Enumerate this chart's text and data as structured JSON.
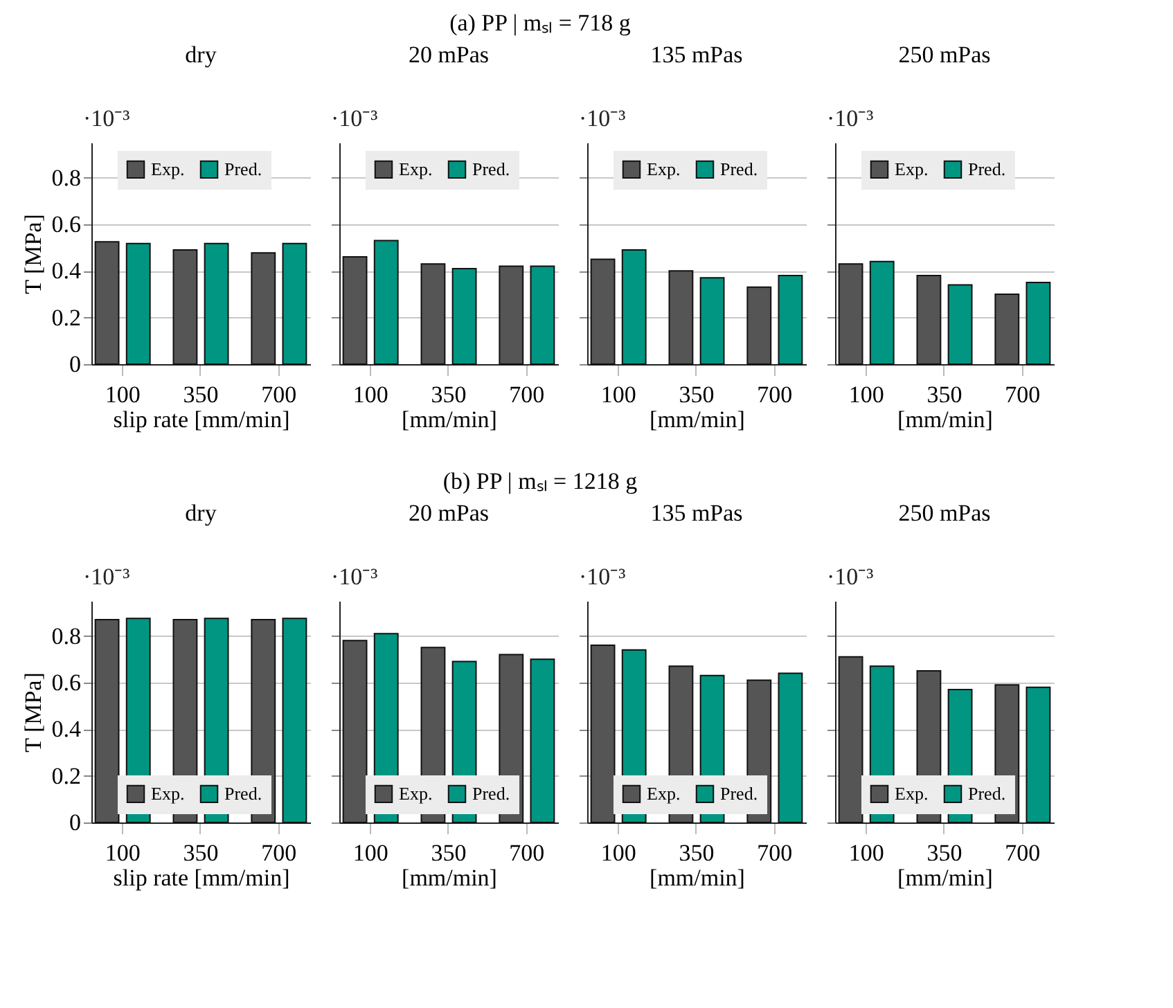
{
  "chart_data": [
    {
      "type": "bar",
      "title": "dry",
      "xlabel": "slip rate [mm/min]",
      "ylabel": "T [MPa]",
      "annotations": [
        "·10⁻³",
        "(a) PP | mₛₗ = 718 g"
      ],
      "categories": [
        "100",
        "350",
        "700"
      ],
      "series": [
        {
          "name": "Exp.",
          "color": "#555555",
          "values": [
            0.525,
            0.49,
            0.477
          ]
        },
        {
          "name": "Pred.",
          "color": "#009682",
          "values": [
            0.517,
            0.517,
            0.517
          ]
        }
      ],
      "ylim": [
        0,
        0.95
      ],
      "yticks": [
        0,
        0.2,
        0.4,
        0.6,
        0.8
      ],
      "grid": "y",
      "legend": "top"
    },
    {
      "type": "bar",
      "title": "20 mPas",
      "xlabel": "[mm/min]",
      "annotations": [
        "·10⁻³"
      ],
      "categories": [
        "100",
        "350",
        "700"
      ],
      "series": [
        {
          "name": "Exp.",
          "color": "#555555",
          "values": [
            0.46,
            0.43,
            0.42
          ]
        },
        {
          "name": "Pred.",
          "color": "#009682",
          "values": [
            0.53,
            0.41,
            0.42
          ]
        }
      ],
      "ylim": [
        0,
        0.95
      ],
      "yticks": [
        0,
        0.2,
        0.4,
        0.6,
        0.8
      ],
      "grid": "y",
      "legend": "top",
      "tick_labels": "x"
    },
    {
      "type": "bar",
      "title": "135 mPas",
      "xlabel": "[mm/min]",
      "annotations": [
        "·10⁻³"
      ],
      "categories": [
        "100",
        "350",
        "700"
      ],
      "series": [
        {
          "name": "Exp.",
          "color": "#555555",
          "values": [
            0.45,
            0.4,
            0.33
          ]
        },
        {
          "name": "Pred.",
          "color": "#009682",
          "values": [
            0.49,
            0.37,
            0.38
          ]
        }
      ],
      "ylim": [
        0,
        0.95
      ],
      "yticks": [
        0,
        0.2,
        0.4,
        0.6,
        0.8
      ],
      "grid": "y",
      "legend": "top",
      "tick_labels": "x"
    },
    {
      "type": "bar",
      "title": "250 mPas",
      "xlabel": "[mm/min]",
      "annotations": [
        "·10⁻³"
      ],
      "categories": [
        "100",
        "350",
        "700"
      ],
      "series": [
        {
          "name": "Exp.",
          "color": "#555555",
          "values": [
            0.43,
            0.38,
            0.3
          ]
        },
        {
          "name": "Pred.",
          "color": "#009682",
          "values": [
            0.44,
            0.34,
            0.35
          ]
        }
      ],
      "ylim": [
        0,
        0.95
      ],
      "yticks": [
        0,
        0.2,
        0.4,
        0.6,
        0.8
      ],
      "grid": "y",
      "legend": "top",
      "tick_labels": "x"
    },
    {
      "type": "bar",
      "title": "dry",
      "xlabel": "slip rate [mm/min]",
      "ylabel": "T [MPa]",
      "annotations": [
        "·10⁻³",
        "(b) PP | mₛₗ = 1218 g"
      ],
      "categories": [
        "100",
        "350",
        "700"
      ],
      "series": [
        {
          "name": "Exp.",
          "color": "#555555",
          "values": [
            0.87,
            0.87,
            0.87
          ]
        },
        {
          "name": "Pred.",
          "color": "#009682",
          "values": [
            0.875,
            0.875,
            0.875
          ]
        }
      ],
      "ylim": [
        0,
        0.95
      ],
      "yticks": [
        0,
        0.2,
        0.4,
        0.6,
        0.8
      ],
      "grid": "y",
      "legend": "bottom"
    },
    {
      "type": "bar",
      "title": "20 mPas",
      "xlabel": "[mm/min]",
      "annotations": [
        "·10⁻³"
      ],
      "categories": [
        "100",
        "350",
        "700"
      ],
      "series": [
        {
          "name": "Exp.",
          "color": "#555555",
          "values": [
            0.78,
            0.75,
            0.72
          ]
        },
        {
          "name": "Pred.",
          "color": "#009682",
          "values": [
            0.81,
            0.69,
            0.7
          ]
        }
      ],
      "ylim": [
        0,
        0.95
      ],
      "yticks": [
        0,
        0.2,
        0.4,
        0.6,
        0.8
      ],
      "grid": "y",
      "legend": "bottom",
      "tick_labels": "x"
    },
    {
      "type": "bar",
      "title": "135 mPas",
      "xlabel": "[mm/min]",
      "annotations": [
        "·10⁻³"
      ],
      "categories": [
        "100",
        "350",
        "700"
      ],
      "series": [
        {
          "name": "Exp.",
          "color": "#555555",
          "values": [
            0.76,
            0.67,
            0.61
          ]
        },
        {
          "name": "Pred.",
          "color": "#009682",
          "values": [
            0.74,
            0.63,
            0.64
          ]
        }
      ],
      "ylim": [
        0,
        0.95
      ],
      "yticks": [
        0,
        0.2,
        0.4,
        0.6,
        0.8
      ],
      "grid": "y",
      "legend": "bottom",
      "tick_labels": "x"
    },
    {
      "type": "bar",
      "title": "250 mPas",
      "xlabel": "[mm/min]",
      "annotations": [
        "·10⁻³"
      ],
      "categories": [
        "100",
        "350",
        "700"
      ],
      "series": [
        {
          "name": "Exp.",
          "color": "#555555",
          "values": [
            0.71,
            0.65,
            0.59
          ]
        },
        {
          "name": "Pred.",
          "color": "#009682",
          "values": [
            0.67,
            0.57,
            0.58
          ]
        }
      ],
      "ylim": [
        0,
        0.95
      ],
      "yticks": [
        0,
        0.2,
        0.4,
        0.6,
        0.8
      ],
      "grid": "y",
      "legend": "bottom",
      "tick_labels": "x"
    }
  ]
}
